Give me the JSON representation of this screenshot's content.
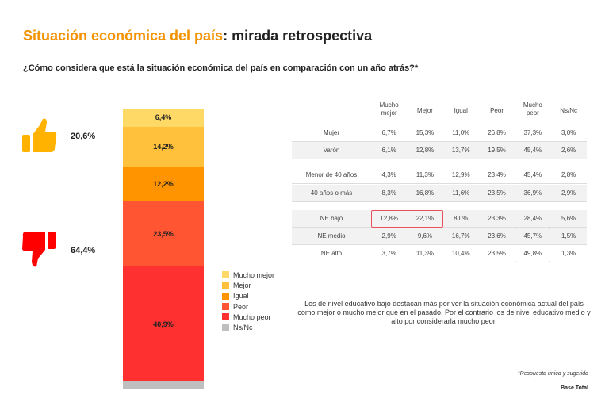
{
  "title": {
    "highlight": "Situación económica del país",
    "rest": ": mirada retrospectiva"
  },
  "question": "¿Cómo considera que está la situación económica del país en comparación con un año atrás?*",
  "summary": {
    "positive": "20,6%",
    "negative": "64,4%"
  },
  "chart_data": {
    "type": "bar",
    "stacked": true,
    "categories": [
      "Mucho mejor",
      "Mejor",
      "Igual",
      "Peor",
      "Mucho peor",
      "Ns/Nc"
    ],
    "values": [
      6.4,
      14.2,
      12.2,
      23.5,
      40.9,
      2.8
    ],
    "labels": [
      "6,4%",
      "14,2%",
      "12,2%",
      "23,5%",
      "40,9%",
      ""
    ],
    "colors": [
      "#ffd966",
      "#ffc13b",
      "#ff9400",
      "#ff5533",
      "#ff3030",
      "#bfbfbf"
    ],
    "legend_position": "right",
    "ylim": [
      0,
      100
    ]
  },
  "table": {
    "headers": [
      "Mucho\nmejor",
      "Mejor",
      "Igual",
      "Peor",
      "Mucho\npeor",
      "Ns/Nc"
    ],
    "rows": [
      {
        "label": "Mujer",
        "values": [
          "6,7%",
          "15,3%",
          "11,0%",
          "26,8%",
          "37,3%",
          "3,0%"
        ]
      },
      {
        "label": "Varón",
        "values": [
          "6,1%",
          "12,8%",
          "13,7%",
          "19,5%",
          "45,4%",
          "2,6%"
        ]
      },
      {
        "label": "Menor de 40 años",
        "values": [
          "4,3%",
          "11,3%",
          "12,9%",
          "23,4%",
          "45,4%",
          "2,8%"
        ]
      },
      {
        "label": "40 años o más",
        "values": [
          "8,3%",
          "16,8%",
          "11,6%",
          "23,5%",
          "36,9%",
          "2,9%"
        ]
      },
      {
        "label": "NE bajo",
        "values": [
          "12,8%",
          "22,1%",
          "8,0%",
          "23,3%",
          "28,4%",
          "5,6%"
        ]
      },
      {
        "label": "NE medio",
        "values": [
          "2,9%",
          "9,6%",
          "16,7%",
          "23,6%",
          "45,7%",
          "1,5%"
        ]
      },
      {
        "label": "NE alto",
        "values": [
          "3,7%",
          "11,3%",
          "10,4%",
          "23,5%",
          "49,8%",
          "1,3%"
        ]
      }
    ]
  },
  "note": "Los de nivel educativo bajo destacan más por ver la situación económica actual del país como mejor o mucho mejor que en el pasado. Por el contrario los de nivel educativo medio y alto por considerarla mucho peor.",
  "footnote": "*Respuesta única y sugerida",
  "base": "Base Total"
}
